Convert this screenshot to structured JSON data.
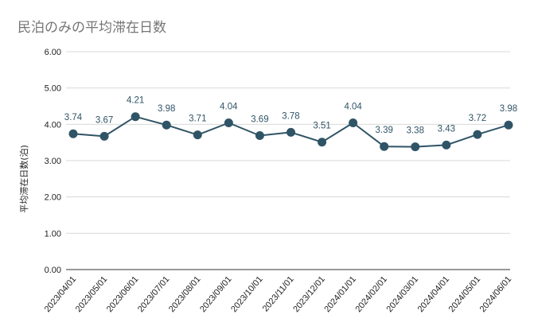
{
  "chart_data": {
    "type": "line",
    "title": "民泊のみの平均滞在日数",
    "xlabel": "",
    "ylabel": "平均滞在日数(泊)",
    "categories": [
      "2023/04/01",
      "2023/05/01",
      "2023/06/01",
      "2023/07/01",
      "2023/08/01",
      "2023/09/01",
      "2023/10/01",
      "2023/11/01",
      "2023/12/01",
      "2024/01/01",
      "2024/02/01",
      "2024/03/01",
      "2024/04/01",
      "2024/05/01",
      "2024/06/01"
    ],
    "series": [
      {
        "values": [
          3.74,
          3.67,
          4.21,
          3.98,
          3.71,
          4.04,
          3.69,
          3.78,
          3.51,
          4.04,
          3.39,
          3.38,
          3.43,
          3.72,
          3.98
        ],
        "labels": [
          "3.74",
          "3.67",
          "4.21",
          "3.98",
          "3.71",
          "4.04",
          "3.69",
          "3.78",
          "3.51",
          "4.04",
          "3.39",
          "3.38",
          "3.43",
          "3.72",
          "3.98"
        ],
        "color": "#2f5466"
      }
    ],
    "ylim": [
      0,
      6
    ],
    "yticks": [
      "0.00",
      "1.00",
      "2.00",
      "3.00",
      "4.00",
      "5.00",
      "6.00"
    ],
    "grid": true,
    "legend": "none",
    "colors": {
      "title": "#757575",
      "line": "#2f5466",
      "grid": "#d9d9d9"
    }
  }
}
